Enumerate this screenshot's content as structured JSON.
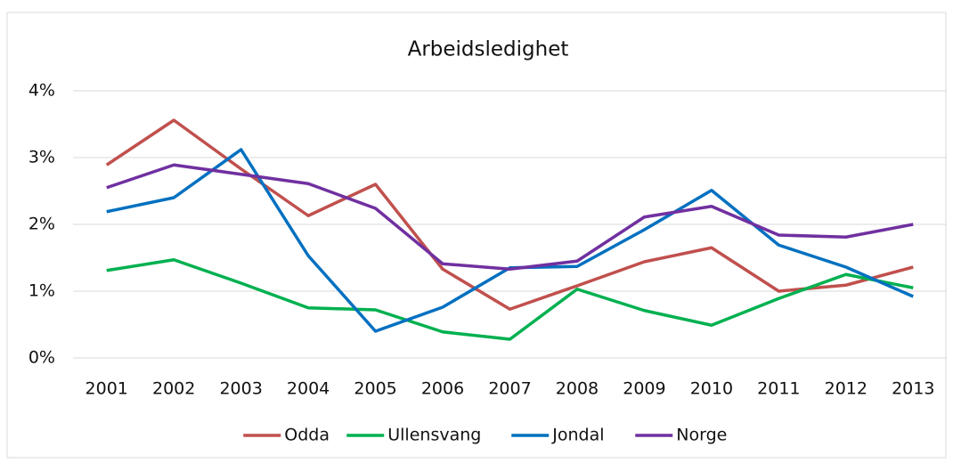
{
  "chart_data": {
    "type": "line",
    "title": "Arbeidsledighet",
    "categories": [
      "2001",
      "2002",
      "2003",
      "2004",
      "2005",
      "2006",
      "2007",
      "2008",
      "2009",
      "2010",
      "2011",
      "2012",
      "2013"
    ],
    "ylim": [
      0,
      4
    ],
    "yticks": [
      {
        "value": 0,
        "label": "0%"
      },
      {
        "value": 1,
        "label": "1%"
      },
      {
        "value": 2,
        "label": "2%"
      },
      {
        "value": 3,
        "label": "3%"
      },
      {
        "value": 4,
        "label": "4%"
      }
    ],
    "grid": true,
    "legend": "bottom",
    "series": [
      {
        "name": "Odda",
        "color": "#c0504d",
        "values": [
          2.89,
          3.56,
          2.83,
          2.13,
          2.6,
          1.33,
          0.73,
          1.08,
          1.44,
          1.65,
          1.0,
          1.09,
          1.36
        ]
      },
      {
        "name": "Ullensvang",
        "color": "#00b050",
        "values": [
          1.31,
          1.47,
          1.12,
          0.75,
          0.72,
          0.39,
          0.28,
          1.03,
          0.71,
          0.49,
          0.89,
          1.25,
          1.05
        ]
      },
      {
        "name": "Jondal",
        "color": "#0070c0",
        "values": [
          2.19,
          2.4,
          3.12,
          1.53,
          0.4,
          0.76,
          1.35,
          1.37,
          1.92,
          2.51,
          1.69,
          1.36,
          0.92
        ]
      },
      {
        "name": "Norge",
        "color": "#7030a0",
        "values": [
          2.55,
          2.89,
          2.75,
          2.61,
          2.24,
          1.41,
          1.33,
          1.45,
          2.11,
          2.27,
          1.84,
          1.81,
          2.0
        ]
      }
    ]
  }
}
